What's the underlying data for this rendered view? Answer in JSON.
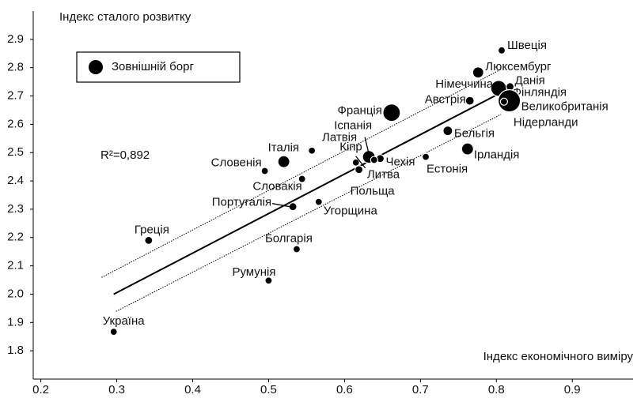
{
  "chart_data": {
    "type": "scatter",
    "y_label": "Індекс сталого розвитку",
    "x_label": "Індекс економічного виміру",
    "annotation": "R²=0,892",
    "xlim": [
      0.19,
      0.98
    ],
    "xticks": [
      0.2,
      0.3,
      0.4,
      0.5,
      0.6,
      0.7,
      0.8,
      0.9
    ],
    "ylim": [
      1.7,
      3.0
    ],
    "yticks": [
      1.8,
      1.9,
      {
        "value": 2.0,
        "label": "2.0"
      },
      2.1,
      2.2,
      2.3,
      2.4,
      2.5,
      2.6,
      2.7,
      2.8,
      2.9
    ],
    "legend": "upper left",
    "series": [
      {
        "name": "Зовнішній борг",
        "color": "#000000",
        "labels": [
          "Швеція",
          "Люксембург",
          "Німеччина",
          "Данія",
          "Фінляндія",
          "Великобританія",
          "Нідерланди",
          "Австрія",
          "Франція",
          "Іспанія",
          "Бельгія",
          "Ірландія",
          "Естонія",
          "Чехія",
          "Литва",
          "Кіпр",
          "Латвія",
          "Польща",
          "Італія",
          "Словенія",
          "Словакія",
          "Португалія",
          "Угорщина",
          "Болгарія",
          "Румунія",
          "Греція",
          "Україна"
        ],
        "x": [
          0.807,
          0.776,
          0.803,
          0.818,
          0.816,
          0.817,
          0.81,
          0.765,
          0.662,
          0.632,
          0.736,
          0.762,
          0.707,
          0.647,
          0.639,
          0.615,
          0.557,
          0.619,
          0.52,
          0.495,
          0.544,
          0.532,
          0.566,
          0.537,
          0.5,
          0.342,
          0.296
        ],
        "values": [
          2.861,
          2.783,
          2.727,
          2.733,
          2.705,
          2.683,
          2.68,
          2.683,
          2.641,
          2.485,
          2.577,
          2.513,
          2.485,
          2.479,
          2.474,
          2.465,
          2.507,
          2.44,
          2.468,
          2.435,
          2.407,
          2.309,
          2.326,
          2.159,
          2.048,
          2.19,
          1.867
        ],
        "sizes": [
          4.5,
          7,
          10,
          5,
          6,
          14,
          4.5,
          5.5,
          11,
          8,
          6,
          7.5,
          4.5,
          5,
          4.5,
          4.5,
          4.5,
          5,
          7.5,
          4.5,
          4.5,
          5,
          4.5,
          4.5,
          4.5,
          5,
          4.5
        ]
      }
    ],
    "trend_line": {
      "x": [
        0.296,
        0.807
      ],
      "y": [
        2.0,
        2.713
      ]
    },
    "upper_band": {
      "x": [
        0.28,
        0.806
      ],
      "y": [
        2.059,
        2.794
      ]
    },
    "lower_band": {
      "x": [
        0.299,
        0.806
      ],
      "y": [
        1.939,
        2.635
      ]
    }
  }
}
